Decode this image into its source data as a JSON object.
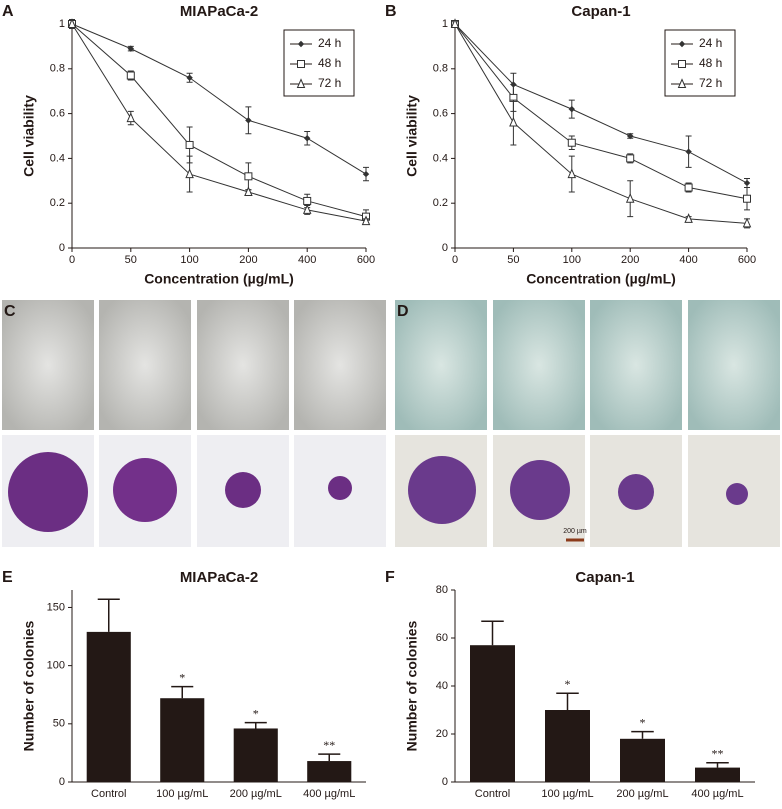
{
  "chart_data": [
    {
      "type": "line",
      "panel_label": "A",
      "title": "MIAPaCa-2",
      "x_label": "Concentration (µg/mL)",
      "y_label": "Cell viability",
      "categories": [
        "0",
        "50",
        "100",
        "200",
        "400",
        "600"
      ],
      "ylim": [
        0,
        1
      ],
      "yticks": [
        0,
        0.2,
        0.4,
        0.6,
        0.8,
        1
      ],
      "legend": "upper right",
      "series": [
        {
          "name": "24 h",
          "marker": "diamond",
          "color": "#333333",
          "values": [
            1,
            0.89,
            0.76,
            0.57,
            0.49,
            0.33
          ],
          "errors": [
            0.02,
            0.01,
            0.02,
            0.06,
            0.03,
            0.03
          ]
        },
        {
          "name": "48 h",
          "marker": "square",
          "color": "#333333",
          "values": [
            1,
            0.77,
            0.46,
            0.32,
            0.21,
            0.14
          ],
          "errors": [
            0.02,
            0.02,
            0.08,
            0.06,
            0.03,
            0.03
          ]
        },
        {
          "name": "72 h",
          "marker": "triangle",
          "color": "#333333",
          "values": [
            1,
            0.58,
            0.33,
            0.25,
            0.17,
            0.12
          ],
          "errors": [
            0.02,
            0.03,
            0.08,
            0.01,
            0.02,
            0.01
          ]
        }
      ]
    },
    {
      "type": "line",
      "panel_label": "B",
      "title": "Capan-1",
      "x_label": "Concentration (µg/mL)",
      "y_label": "Cell viability",
      "categories": [
        "0",
        "50",
        "100",
        "200",
        "400",
        "600"
      ],
      "ylim": [
        0,
        1
      ],
      "yticks": [
        0,
        0.2,
        0.4,
        0.6,
        0.8,
        1
      ],
      "legend": "upper right",
      "series": [
        {
          "name": "24 h",
          "marker": "diamond",
          "color": "#333333",
          "values": [
            1,
            0.73,
            0.62,
            0.5,
            0.43,
            0.29
          ],
          "errors": [
            0.01,
            0.05,
            0.04,
            0.01,
            0.07,
            0.02
          ]
        },
        {
          "name": "48 h",
          "marker": "square",
          "color": "#333333",
          "values": [
            1,
            0.67,
            0.47,
            0.4,
            0.27,
            0.22
          ],
          "errors": [
            0.01,
            0.06,
            0.03,
            0.02,
            0.02,
            0.05
          ]
        },
        {
          "name": "72 h",
          "marker": "triangle",
          "color": "#333333",
          "values": [
            1,
            0.56,
            0.33,
            0.22,
            0.13,
            0.11
          ],
          "errors": [
            0.01,
            0.1,
            0.08,
            0.08,
            0.01,
            0.02
          ]
        }
      ]
    },
    {
      "type": "bar",
      "panel_label": "E",
      "title": "MIAPaCa-2",
      "y_label": "Number of colonies",
      "color": "#231815",
      "categories": [
        "Control",
        "100 µg/mL",
        "200 µg/mL",
        "400 µg/mL"
      ],
      "values": [
        129,
        72,
        46,
        18
      ],
      "errors": [
        28,
        10,
        5,
        6
      ],
      "significance": [
        null,
        "*",
        "*",
        "**"
      ],
      "ylim": [
        0,
        165
      ],
      "yticks": [
        0,
        50,
        100,
        150
      ]
    },
    {
      "type": "bar",
      "panel_label": "F",
      "title": "Capan-1",
      "y_label": "Number of colonies",
      "color": "#231815",
      "categories": [
        "Control",
        "100 µg/mL",
        "200 µg/mL",
        "400 µg/mL"
      ],
      "values": [
        57,
        30,
        18,
        6
      ],
      "errors": [
        10,
        7,
        3,
        2
      ],
      "significance": [
        null,
        "*",
        "*",
        "**"
      ],
      "ylim": [
        0,
        80
      ],
      "yticks": [
        0,
        20,
        40,
        60,
        80
      ]
    }
  ],
  "images": [
    {
      "panel_label": "C"
    },
    {
      "panel_label": "D",
      "scale_bar": "200 µm"
    }
  ]
}
